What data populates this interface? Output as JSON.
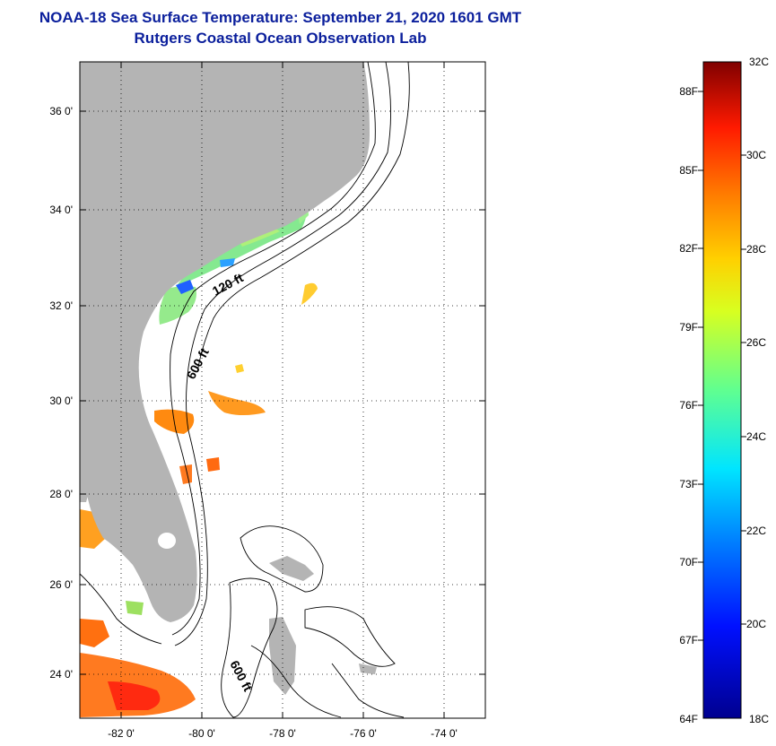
{
  "header": {
    "title": "NOAA-18 Sea Surface Temperature:  September 21, 2020 1601 GMT",
    "subtitle": "Rutgers Coastal Ocean Observation Lab"
  },
  "map": {
    "lon_ticks": [
      "-82 0'",
      "-80 0'",
      "-78 0'",
      "-76 0'",
      "-74 0'"
    ],
    "lat_ticks": [
      "36 0'",
      "34 0'",
      "32 0'",
      "30 0'",
      "28 0'",
      "26 0'",
      "24 0'"
    ],
    "isobath_labels": [
      "120 ft",
      "600 ft",
      "600 ft"
    ],
    "land_color": "#b4b4b4",
    "grid": true
  },
  "colorbar": {
    "top_label": "32C",
    "bottom_label": "18C",
    "left_labels": [
      "88F",
      "85F",
      "82F",
      "79F",
      "76F",
      "73F",
      "70F",
      "67F",
      "64F"
    ],
    "right_labels": [
      "30C",
      "28C",
      "26C",
      "24C",
      "22C",
      "20C"
    ]
  }
}
